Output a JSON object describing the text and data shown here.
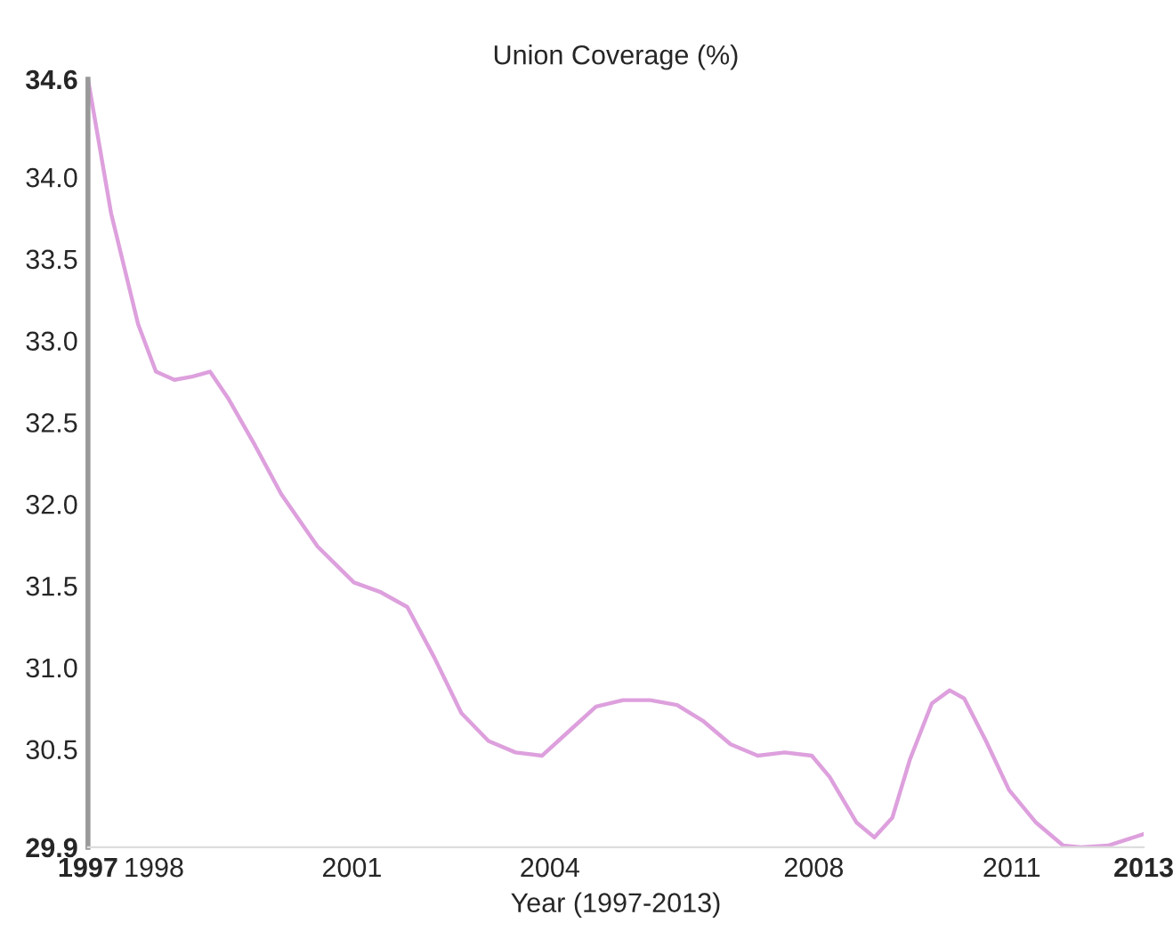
{
  "chart_data": {
    "type": "line",
    "title": "Union Coverage (%)",
    "xlabel": "Year (1997-2013)",
    "x": [
      1997.0,
      1997.35,
      1997.76,
      1998.03,
      1998.31,
      1998.58,
      1998.85,
      1999.12,
      1999.53,
      1999.93,
      2000.48,
      2001.03,
      2001.44,
      2001.84,
      2002.25,
      2002.66,
      2003.07,
      2003.48,
      2003.88,
      2004.29,
      2004.7,
      2005.11,
      2005.52,
      2005.93,
      2006.33,
      2006.74,
      2007.15,
      2007.56,
      2007.97,
      2008.24,
      2008.65,
      2008.92,
      2009.19,
      2009.46,
      2009.79,
      2010.06,
      2010.28,
      2010.61,
      2010.96,
      2011.37,
      2011.78,
      2012.05,
      2012.46,
      2013.0
    ],
    "series": [
      {
        "color": "#dda0dd",
        "values": [
          34.6,
          33.78,
          33.1,
          32.81,
          32.76,
          32.78,
          32.81,
          32.65,
          32.36,
          32.06,
          31.74,
          31.52,
          31.46,
          31.37,
          31.06,
          30.72,
          30.55,
          30.48,
          30.46,
          30.61,
          30.76,
          30.8,
          30.8,
          30.77,
          30.67,
          30.53,
          30.46,
          30.48,
          30.46,
          30.33,
          30.05,
          29.96,
          30.08,
          30.44,
          30.78,
          30.86,
          30.81,
          30.55,
          30.25,
          30.05,
          29.91,
          29.9,
          29.91,
          29.98
        ]
      }
    ],
    "xlim": [
      1997,
      2013
    ],
    "xticks": [
      1997,
      1998,
      2001,
      2004,
      2008,
      2011,
      2013
    ],
    "ylim": [
      29.9,
      34.6
    ],
    "yticks": [
      29.9,
      30.5,
      {
        "value": 31,
        "label": "31.0"
      },
      31.5,
      {
        "value": 32,
        "label": "32.0"
      },
      32.5,
      {
        "value": 33,
        "label": "33.0"
      },
      33.5,
      {
        "value": 34,
        "label": "34.0"
      },
      34.6
    ],
    "grid": false,
    "legend": false,
    "marker": "none",
    "line_style": "solid"
  }
}
